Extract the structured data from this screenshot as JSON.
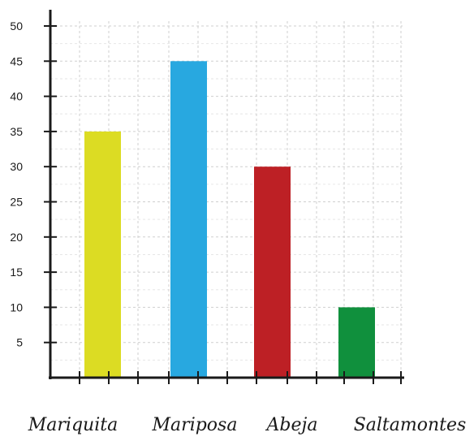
{
  "chart_data": {
    "type": "bar",
    "categories": [
      "Mariquita",
      "Mariposa",
      "Abeja",
      "Saltamontes"
    ],
    "series": [
      {
        "values": [
          35,
          45,
          30,
          10
        ]
      }
    ],
    "colors": [
      "#dcdc23",
      "#28a8e0",
      "#bd2025",
      "#10903d"
    ],
    "title": "",
    "xlabel": "",
    "ylabel": "",
    "ylim": [
      0,
      50
    ],
    "yticks": [
      5,
      10,
      15,
      20,
      25,
      30,
      35,
      40,
      45,
      50
    ],
    "grid": true,
    "grid_style": "dashed",
    "axis_color": "#1a1a1a",
    "grid_color": "#cfcfcf"
  }
}
